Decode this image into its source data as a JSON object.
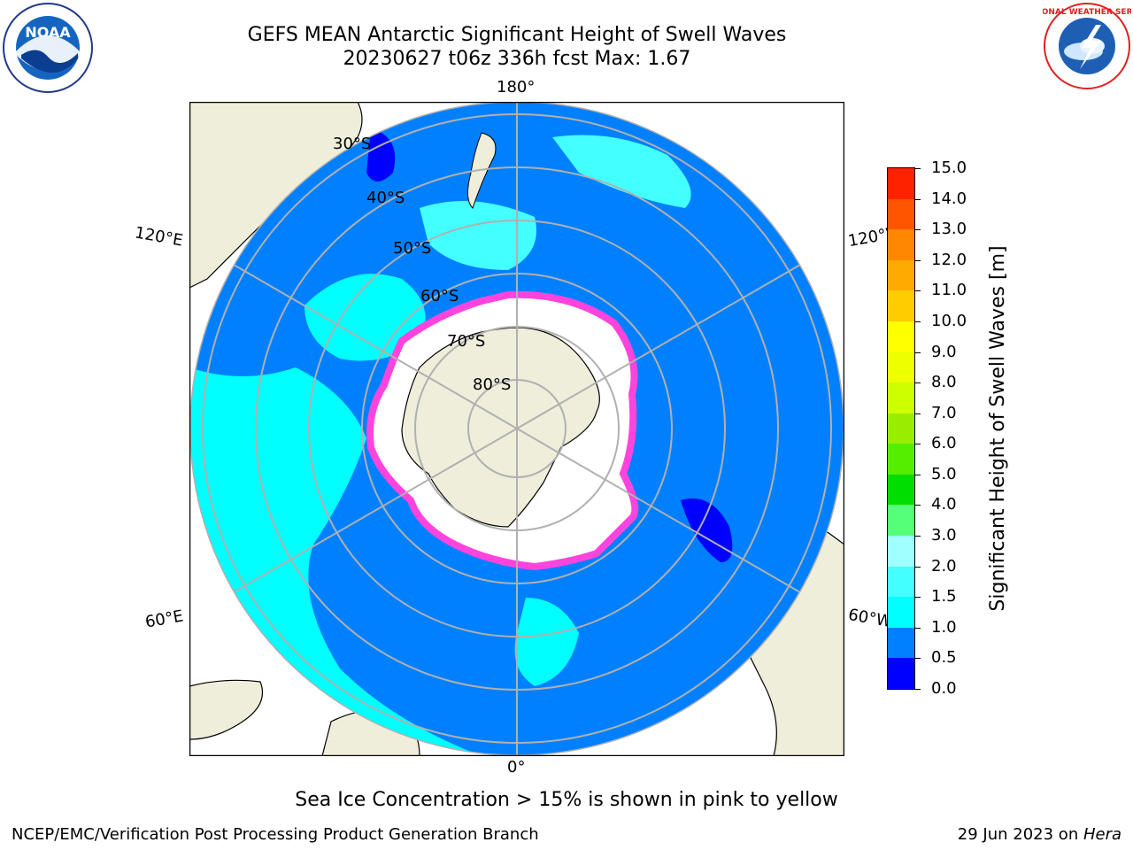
{
  "title": {
    "line1": "GEFS MEAN Antarctic Significant Height of Swell Waves",
    "line2": "20230627 t06z 336h fcst   Max: 1.67"
  },
  "logos": {
    "left": {
      "text": "NOAA",
      "ring_text": "NATIONAL OCEANIC AND ATMOSPHERIC ADMINISTRATION · U.S. DEPARTMENT OF COMMERCE"
    },
    "right": {
      "ring_text": "NATIONAL WEATHER SERVICE"
    }
  },
  "map": {
    "projection": "south-polar-stereographic",
    "longitude_labels": {
      "top": "180°",
      "bottom": "0°",
      "upper_left": "120°E",
      "lower_left": "60°E",
      "upper_right": "120°W",
      "lower_right": "60°W"
    },
    "latitude_labels": [
      "30°S",
      "40°S",
      "50°S",
      "60°S",
      "70°S",
      "80°S"
    ],
    "colors": {
      "ocean_base": "#0080ff",
      "land": "#efeedb",
      "sea_ice": "#ffffff",
      "ice_edge": "#ff44dd",
      "grid": "#b0b0b0"
    }
  },
  "colorbar": {
    "label": "Significant Height of Swell Waves [m]",
    "ticks": [
      "0.0",
      "0.5",
      "1.0",
      "1.5",
      "2.0",
      "3.0",
      "4.0",
      "5.0",
      "6.0",
      "7.0",
      "8.0",
      "9.0",
      "10.0",
      "11.0",
      "12.0",
      "13.0",
      "14.0",
      "15.0"
    ],
    "colors": [
      "#0000ff",
      "#0080ff",
      "#00ffff",
      "#44ffff",
      "#a0ffff",
      "#55ff77",
      "#00dd00",
      "#55ee00",
      "#99ee00",
      "#ccff00",
      "#eeff00",
      "#ffff00",
      "#ffcc00",
      "#ffaa00",
      "#ff8800",
      "#ff5500",
      "#ff2200",
      "#ff0000"
    ]
  },
  "ice_note": "Sea Ice Concentration > 15% is shown in pink to yellow",
  "footer": {
    "left": "NCEP/EMC/Verification Post Processing Product Generation Branch",
    "date": "29 Jun 2023 on ",
    "host": "Hera"
  }
}
